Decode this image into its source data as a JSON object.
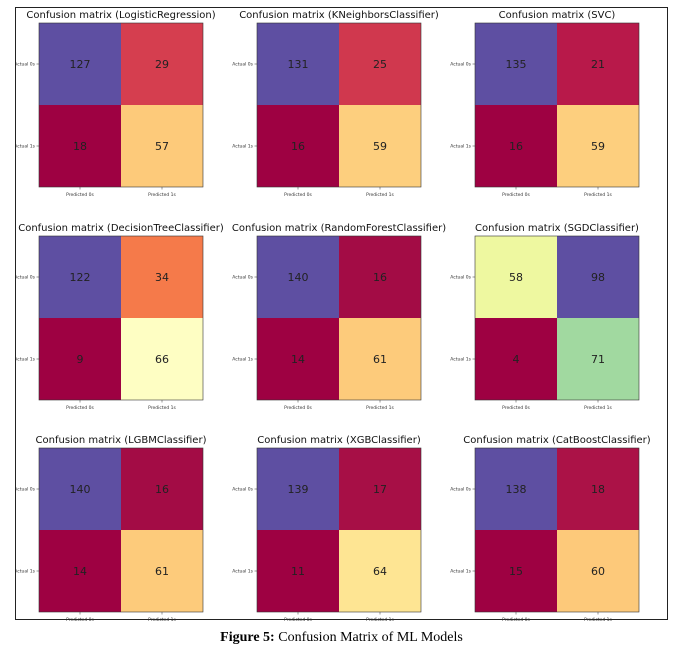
{
  "caption": {
    "label": "Figure 5:",
    "text": " Confusion Matrix of ML Models"
  },
  "colors": {
    "low": "#9e0142",
    "mid_low": "#d53e4f",
    "mid": "#f46d43",
    "mid_high": "#fdae61",
    "light": "#fee08b",
    "pale": "#ffffbf",
    "green_yellow": "#e6f598",
    "green": "#abdda4",
    "high": "#5e4fa2"
  },
  "chart_data": [
    {
      "type": "heatmap",
      "title": "Confusion matrix (LogisticRegression)",
      "xticks": [
        "Predicted 0s",
        "Predicted 1s"
      ],
      "yticks": [
        "Actual 0s",
        "Actual 1s"
      ],
      "values": [
        [
          127,
          29
        ],
        [
          18,
          57
        ]
      ],
      "cell_colors": [
        [
          "#5e4fa2",
          "#d53e4f"
        ],
        [
          "#9e0142",
          "#fdca7a"
        ]
      ]
    },
    {
      "type": "heatmap",
      "title": "Confusion matrix (KNeighborsClassifier)",
      "xticks": [
        "Predicted 0s",
        "Predicted 1s"
      ],
      "yticks": [
        "Actual 0s",
        "Actual 1s"
      ],
      "values": [
        [
          131,
          25
        ],
        [
          16,
          59
        ]
      ],
      "cell_colors": [
        [
          "#5e4fa2",
          "#d0384e"
        ],
        [
          "#9e0142",
          "#fdcf7e"
        ]
      ]
    },
    {
      "type": "heatmap",
      "title": "Confusion matrix (SVC)",
      "xticks": [
        "Predicted 0s",
        "Predicted 1s"
      ],
      "yticks": [
        "Actual 0s",
        "Actual 1s"
      ],
      "values": [
        [
          135,
          21
        ],
        [
          16,
          59
        ]
      ],
      "cell_colors": [
        [
          "#5e4fa2",
          "#b8194a"
        ],
        [
          "#9e0142",
          "#fdcf7e"
        ]
      ]
    },
    {
      "type": "heatmap",
      "title": "Confusion matrix (DecisionTreeClassifier)",
      "xticks": [
        "Predicted 0s",
        "Predicted 1s"
      ],
      "yticks": [
        "Actual 0s",
        "Actual 1s"
      ],
      "values": [
        [
          122,
          34
        ],
        [
          9,
          66
        ]
      ],
      "cell_colors": [
        [
          "#5e4fa2",
          "#f57a4a"
        ],
        [
          "#9e0142",
          "#fefec3"
        ]
      ]
    },
    {
      "type": "heatmap",
      "title": "Confusion matrix (RandomForestClassifier)",
      "xticks": [
        "Predicted 0s",
        "Predicted 1s"
      ],
      "yticks": [
        "Actual 0s",
        "Actual 1s"
      ],
      "values": [
        [
          140,
          16
        ],
        [
          14,
          61
        ]
      ],
      "cell_colors": [
        [
          "#5e4fa2",
          "#a30c45"
        ],
        [
          "#9e0142",
          "#fdcb7b"
        ]
      ]
    },
    {
      "type": "heatmap",
      "title": "Confusion matrix (SGDClassifier)",
      "xticks": [
        "Predicted 0s",
        "Predicted 1s"
      ],
      "yticks": [
        "Actual 0s",
        "Actual 1s"
      ],
      "values": [
        [
          58,
          98
        ],
        [
          4,
          71
        ]
      ],
      "cell_colors": [
        [
          "#eef8a0",
          "#5e4fa2"
        ],
        [
          "#9e0142",
          "#a1d9a0"
        ]
      ]
    },
    {
      "type": "heatmap",
      "title": "Confusion matrix (LGBMClassifier)",
      "xticks": [
        "Predicted 0s",
        "Predicted 1s"
      ],
      "yticks": [
        "Actual 0s",
        "Actual 1s"
      ],
      "values": [
        [
          140,
          16
        ],
        [
          14,
          61
        ]
      ],
      "cell_colors": [
        [
          "#5e4fa2",
          "#a30c45"
        ],
        [
          "#9e0142",
          "#fdcb7b"
        ]
      ]
    },
    {
      "type": "heatmap",
      "title": "Confusion matrix (XGBClassifier)",
      "xticks": [
        "Predicted 0s",
        "Predicted 1s"
      ],
      "yticks": [
        "Actual 0s",
        "Actual 1s"
      ],
      "values": [
        [
          139,
          17
        ],
        [
          11,
          64
        ]
      ],
      "cell_colors": [
        [
          "#5e4fa2",
          "#a70f46"
        ],
        [
          "#9e0142",
          "#fee593"
        ]
      ]
    },
    {
      "type": "heatmap",
      "title": "Confusion matrix (CatBoostClassifier)",
      "xticks": [
        "Predicted 0s",
        "Predicted 1s"
      ],
      "yticks": [
        "Actual 0s",
        "Actual 1s"
      ],
      "values": [
        [
          138,
          18
        ],
        [
          15,
          60
        ]
      ],
      "cell_colors": [
        [
          "#5e4fa2",
          "#ab1247"
        ],
        [
          "#9e0142",
          "#fdc97a"
        ]
      ]
    }
  ]
}
